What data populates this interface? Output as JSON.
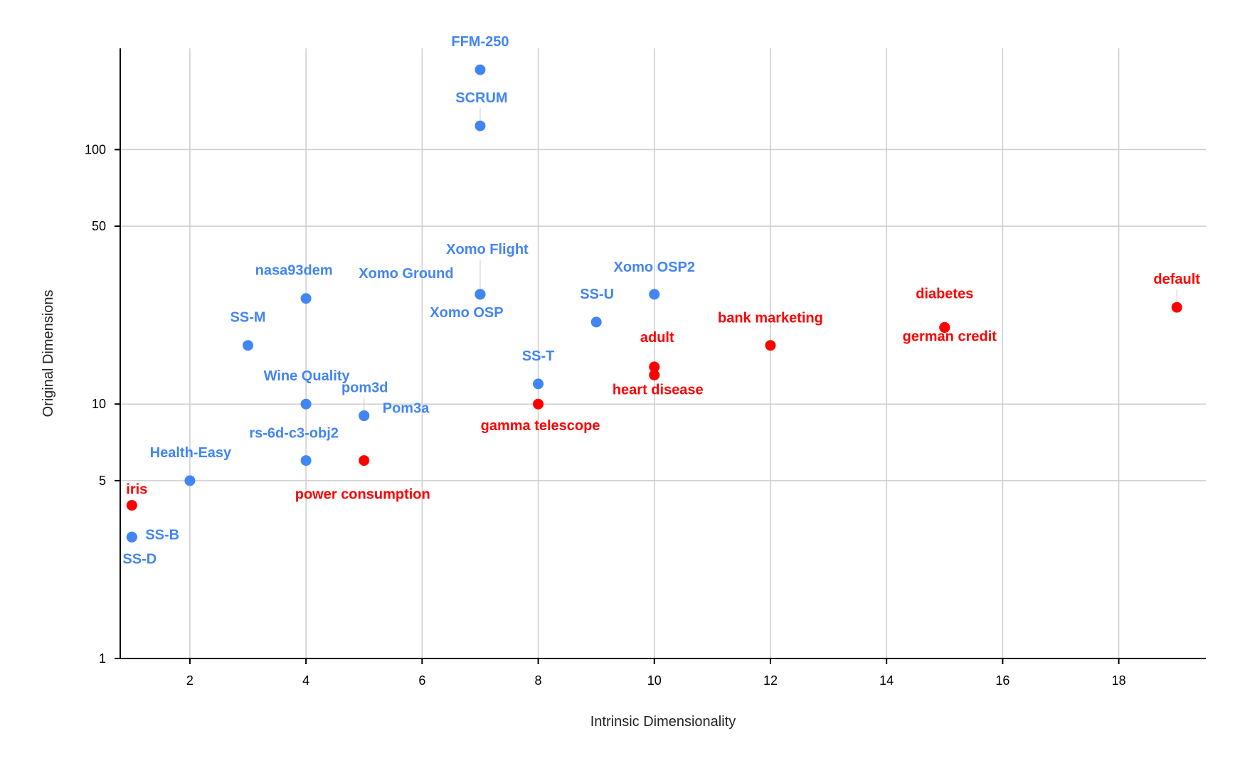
{
  "colors": {
    "blue": "#4285f4",
    "red": "#ff0000"
  },
  "chart_data": {
    "type": "scatter",
    "title": "",
    "xlabel": "Intrinsic Dimensionality",
    "ylabel": "Original Dimensions",
    "xlim": [
      0.8,
      19.5
    ],
    "ylim": [
      1,
      250
    ],
    "yscale": "log",
    "grid": true,
    "xticks": [
      2,
      4,
      6,
      8,
      10,
      12,
      14,
      16,
      18
    ],
    "xtick_labels": [
      "2",
      "4",
      "6",
      "8",
      "10",
      "12",
      "14",
      "16",
      "18"
    ],
    "yticks": [
      1,
      5,
      10,
      50,
      100
    ],
    "ytick_labels": [
      "1",
      "5",
      "10",
      "50",
      "100"
    ],
    "series": [
      {
        "name": "blue",
        "color": "#4285f4",
        "points": [
          {
            "label": "FFM-250",
            "x": 7,
            "y": 206
          },
          {
            "label": "SCRUM",
            "x": 7,
            "y": 124
          },
          {
            "label": "Xomo Flight",
            "x": 7,
            "y": 27
          },
          {
            "label": "Xomo Ground",
            "x": 7,
            "y": 27
          },
          {
            "label": "Xomo OSP",
            "x": 7,
            "y": 27
          },
          {
            "label": "Xomo OSP2",
            "x": 10,
            "y": 27
          },
          {
            "label": "SS-U",
            "x": 9,
            "y": 21
          },
          {
            "label": "nasa93dem",
            "x": 4,
            "y": 26
          },
          {
            "label": "SS-M",
            "x": 3,
            "y": 17
          },
          {
            "label": "SS-T",
            "x": 8,
            "y": 12
          },
          {
            "label": "Wine Quality",
            "x": 4,
            "y": 10
          },
          {
            "label": "pom3d",
            "x": 5,
            "y": 9
          },
          {
            "label": "Pom3a",
            "x": 5,
            "y": 9
          },
          {
            "label": "rs-6d-c3-obj2",
            "x": 4,
            "y": 6
          },
          {
            "label": "Health-Easy",
            "x": 2,
            "y": 5
          },
          {
            "label": "SS-B",
            "x": 1,
            "y": 3
          },
          {
            "label": "SS-D",
            "x": 1,
            "y": 3
          }
        ]
      },
      {
        "name": "red",
        "color": "#ff0000",
        "points": [
          {
            "label": "iris",
            "x": 1,
            "y": 4
          },
          {
            "label": "power consumption",
            "x": 5,
            "y": 6
          },
          {
            "label": "gamma telescope",
            "x": 8,
            "y": 10
          },
          {
            "label": "adult",
            "x": 10,
            "y": 14
          },
          {
            "label": "heart disease",
            "x": 10,
            "y": 13
          },
          {
            "label": "bank marketing",
            "x": 12,
            "y": 17
          },
          {
            "label": "german credit",
            "x": 15,
            "y": 20
          },
          {
            "label": "diabetes",
            "x": 15,
            "y": 20
          },
          {
            "label": "default",
            "x": 19,
            "y": 24
          }
        ]
      }
    ]
  }
}
